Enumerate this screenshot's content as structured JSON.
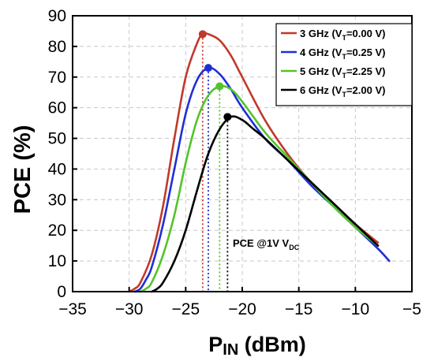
{
  "chart_data": {
    "type": "line",
    "xlabel": {
      "main": "P",
      "sub": "IN",
      "rest": " (dBm)"
    },
    "ylabel": "PCE (%)",
    "xlim": [
      -35,
      -5
    ],
    "ylim": [
      0,
      90
    ],
    "xticks": [
      -35,
      -30,
      -25,
      -20,
      -15,
      -10,
      -5
    ],
    "yticks": [
      0,
      10,
      20,
      30,
      40,
      50,
      60,
      70,
      80,
      90
    ],
    "grid": "dashed, light gray",
    "legend_position": "top-right",
    "annotation": {
      "main": "PCE @1V V",
      "sub": "DC"
    },
    "series": [
      {
        "legend": {
          "pre": "3 GHz (V",
          "sub": "T",
          "post": "=0.00 V)"
        },
        "color": "#c0392b",
        "x": [
          -30,
          -29.5,
          -29,
          -28,
          -27,
          -26,
          -25,
          -24,
          -23.5,
          -23,
          -22,
          -21,
          -20,
          -18,
          -16,
          -14,
          -12,
          -10,
          -8
        ],
        "y": [
          0,
          1,
          3,
          12,
          28,
          50,
          70,
          81,
          84,
          84,
          82,
          77,
          70,
          56,
          45,
          36,
          29,
          22,
          16
        ],
        "peak": {
          "x": -23.5,
          "y": 84
        }
      },
      {
        "legend": {
          "pre": "4 GHz (V",
          "sub": "T",
          "post": "=0.25 V)"
        },
        "color": "#1f2fd4",
        "x": [
          -29.5,
          -29,
          -28.5,
          -28,
          -27,
          -26,
          -25,
          -24,
          -23,
          -22,
          -21,
          -20,
          -18,
          -16,
          -14,
          -12,
          -10,
          -8,
          -7
        ],
        "y": [
          0,
          1,
          4,
          8,
          22,
          40,
          58,
          69,
          73,
          71,
          66,
          60,
          50,
          43,
          35,
          28,
          21,
          14,
          10
        ],
        "peak": {
          "x": -23,
          "y": 73
        }
      },
      {
        "legend": {
          "pre": "5 GHz (V",
          "sub": "T",
          "post": "=2.25 V)"
        },
        "color": "#52c42a",
        "x": [
          -29,
          -28.5,
          -28,
          -27,
          -26,
          -25,
          -24,
          -23,
          -22,
          -21,
          -20,
          -18,
          -16,
          -14,
          -12,
          -10,
          -8
        ],
        "y": [
          0,
          1,
          3,
          12,
          25,
          42,
          56,
          64,
          67,
          66,
          62,
          52,
          44,
          36,
          28,
          21,
          15
        ],
        "peak": {
          "x": -22,
          "y": 67
        }
      },
      {
        "legend": {
          "pre": "6 GHz (V",
          "sub": "T",
          "post": "=2.00 V)"
        },
        "color": "#000000",
        "x": [
          -28,
          -27.5,
          -27,
          -26,
          -25,
          -24,
          -23,
          -22,
          -21,
          -20,
          -19,
          -18,
          -16,
          -14,
          -12,
          -10,
          -8
        ],
        "y": [
          0,
          1,
          3,
          10,
          20,
          33,
          45,
          53,
          57,
          56,
          53,
          50,
          43,
          36,
          29,
          22,
          15
        ],
        "peak": {
          "x": -21.3,
          "y": 57
        }
      }
    ]
  }
}
